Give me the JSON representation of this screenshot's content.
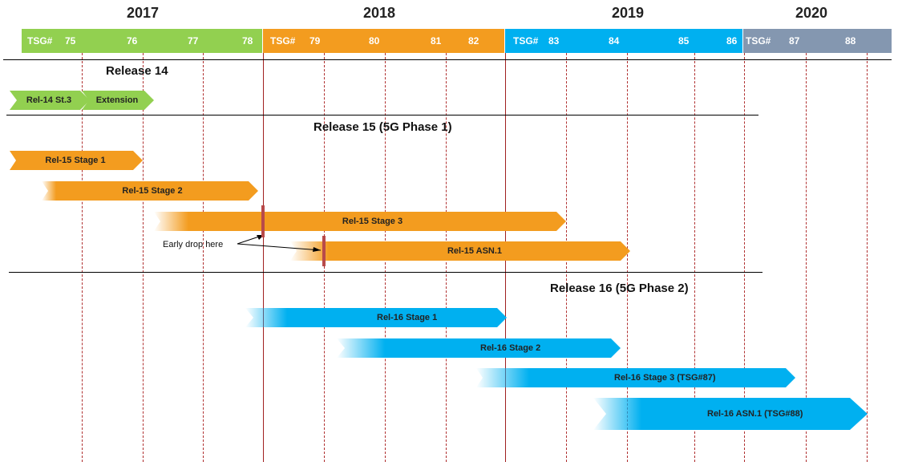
{
  "years": [
    "2017",
    "2018",
    "2019",
    "2020"
  ],
  "tsg_prefix": "TSG#",
  "tsg_numbers": [
    "75",
    "76",
    "77",
    "78",
    "79",
    "80",
    "81",
    "82",
    "83",
    "84",
    "85",
    "86",
    "87",
    "88"
  ],
  "colors": {
    "release14": "#92d050",
    "release15": "#f39c1f",
    "release16": "#00b0f0",
    "year2020": "#8497b0",
    "marker": "#b84a4a",
    "gridline": "#b03030"
  },
  "sections": {
    "release14": "Release 14",
    "release15": "Release 15 (5G Phase 1)",
    "release16": "Release 16 (5G Phase 2)"
  },
  "bars": {
    "rel14_stage3": "Rel-14 St.3",
    "rel14_extension": "Extension",
    "rel15_stage1": "Rel-15 Stage 1",
    "rel15_stage2": "Rel-15 Stage 2",
    "rel15_stage3": "Rel-15 Stage 3",
    "rel15_asn1": "Rel-15 ASN.1",
    "rel16_stage1": "Rel-16 Stage 1",
    "rel16_stage2": "Rel-16 Stage 2",
    "rel16_stage3": "Rel-16 Stage 3 (TSG#87)",
    "rel16_asn1": "Rel-16 ASN.1 (TSG#88)"
  },
  "annotation": "Early drop here"
}
